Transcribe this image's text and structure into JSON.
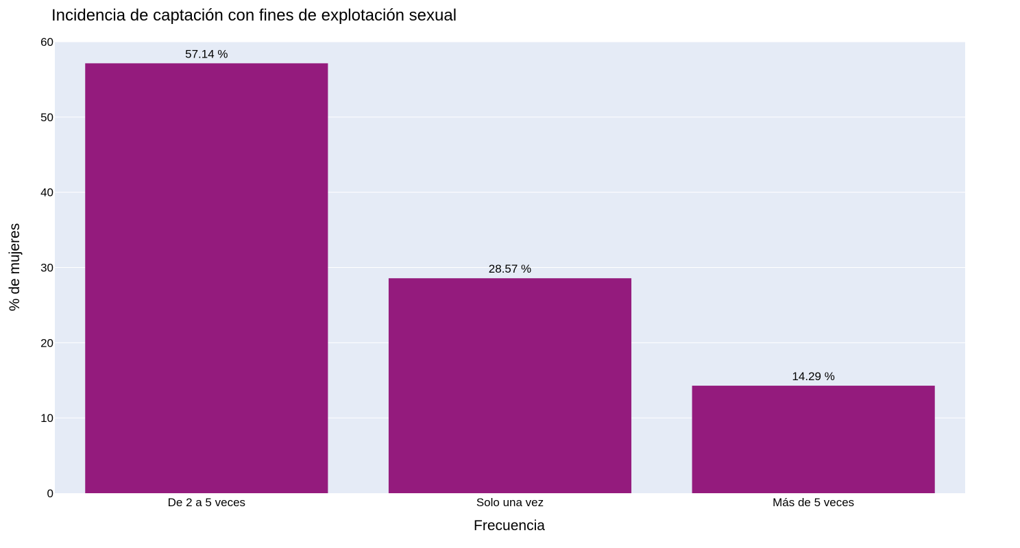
{
  "chart_data": {
    "type": "bar",
    "title": "Incidencia de captación con fines de explotación sexual",
    "xlabel": "Frecuencia",
    "ylabel": "% de mujeres",
    "categories": [
      "De 2 a 5 veces",
      "Solo una vez",
      "Más de 5 veces"
    ],
    "values": [
      57.14,
      28.57,
      14.29
    ],
    "data_labels": [
      "57.14 %",
      "28.57 %",
      "14.29 %"
    ],
    "ylim": [
      0,
      60
    ],
    "yticks": [
      0,
      10,
      20,
      30,
      40,
      50,
      60
    ],
    "grid": true,
    "legend": "none",
    "colors": {
      "bar": "#941b7d",
      "plot_background": "#e5ebf6",
      "gridline": "#ffffff",
      "page_background": "#ffffff"
    }
  }
}
